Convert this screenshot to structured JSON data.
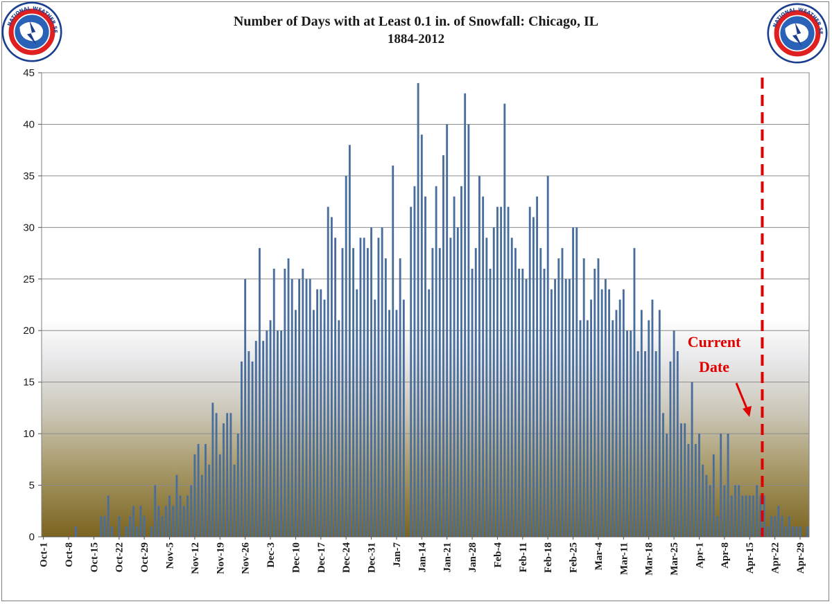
{
  "chart_data": {
    "type": "bar",
    "title": "Number of Days with at Least 0.1 in. of Snowfall:  Chicago, IL",
    "subtitle": "1884-2012",
    "xlabel": "",
    "ylabel": "",
    "ylim": [
      0,
      45
    ],
    "yticks": [
      0,
      5,
      10,
      15,
      20,
      25,
      30,
      35,
      40,
      45
    ],
    "grid": true,
    "legend": "none",
    "start_date": "Oct-1",
    "tick_labels": [
      "Oct-1",
      "Oct-8",
      "Oct-15",
      "Oct-22",
      "Oct-29",
      "Nov-5",
      "Nov-12",
      "Nov-19",
      "Nov-26",
      "Dec-3",
      "Dec-10",
      "Dec-17",
      "Dec-24",
      "Dec-31",
      "Jan-7",
      "Jan-14",
      "Jan-21",
      "Jan-28",
      "Feb-4",
      "Feb-11",
      "Feb-18",
      "Feb-25",
      "Mar-4",
      "Mar-11",
      "Mar-18",
      "Mar-25",
      "Apr-1",
      "Apr-8",
      "Apr-15",
      "Apr-22",
      "Apr-29"
    ],
    "values": [
      0,
      0,
      0,
      0,
      0,
      0,
      0,
      0,
      0,
      1,
      0,
      0,
      0,
      0,
      0,
      0,
      2,
      2,
      4,
      1,
      0,
      2,
      0,
      1,
      2,
      3,
      1,
      3,
      2,
      0,
      1,
      5,
      3,
      2,
      3,
      4,
      3,
      6,
      4,
      3,
      4,
      5,
      8,
      9,
      6,
      9,
      7,
      13,
      12,
      8,
      11,
      12,
      12,
      7,
      10,
      17,
      25,
      18,
      17,
      19,
      28,
      19,
      20,
      21,
      26,
      20,
      20,
      26,
      27,
      25,
      22,
      25,
      26,
      25,
      25,
      22,
      24,
      24,
      23,
      32,
      31,
      29,
      21,
      28,
      35,
      38,
      28,
      24,
      29,
      29,
      28,
      30,
      23,
      29,
      30,
      27,
      22,
      36,
      22,
      27,
      23,
      0,
      32,
      34,
      44,
      39,
      33,
      24,
      28,
      34,
      28,
      37,
      40,
      29,
      33,
      30,
      34,
      43,
      40,
      26,
      28,
      35,
      33,
      29,
      26,
      30,
      32,
      32,
      42,
      32,
      29,
      28,
      26,
      26,
      25,
      32,
      31,
      33,
      28,
      26,
      35,
      24,
      25,
      27,
      28,
      25,
      25,
      30,
      30,
      21,
      27,
      21,
      23,
      26,
      27,
      24,
      25,
      24,
      21,
      22,
      23,
      24,
      20,
      20,
      28,
      18,
      22,
      18,
      21,
      23,
      18,
      22,
      12,
      10,
      17,
      20,
      18,
      11,
      11,
      9,
      15,
      9,
      10,
      7,
      6,
      5,
      8,
      2,
      10,
      5,
      10,
      4,
      5,
      5,
      4,
      4,
      4,
      4,
      5,
      4,
      4,
      1,
      2,
      2,
      3,
      2,
      1,
      2,
      1,
      1,
      1,
      0,
      1
    ],
    "current_date_label": [
      "Current",
      "Date"
    ],
    "colors": {
      "bar": "#4a6e9c",
      "current_date_line": "#e00000",
      "annotation": "#e00000",
      "grid": "#8c8c8c"
    }
  }
}
